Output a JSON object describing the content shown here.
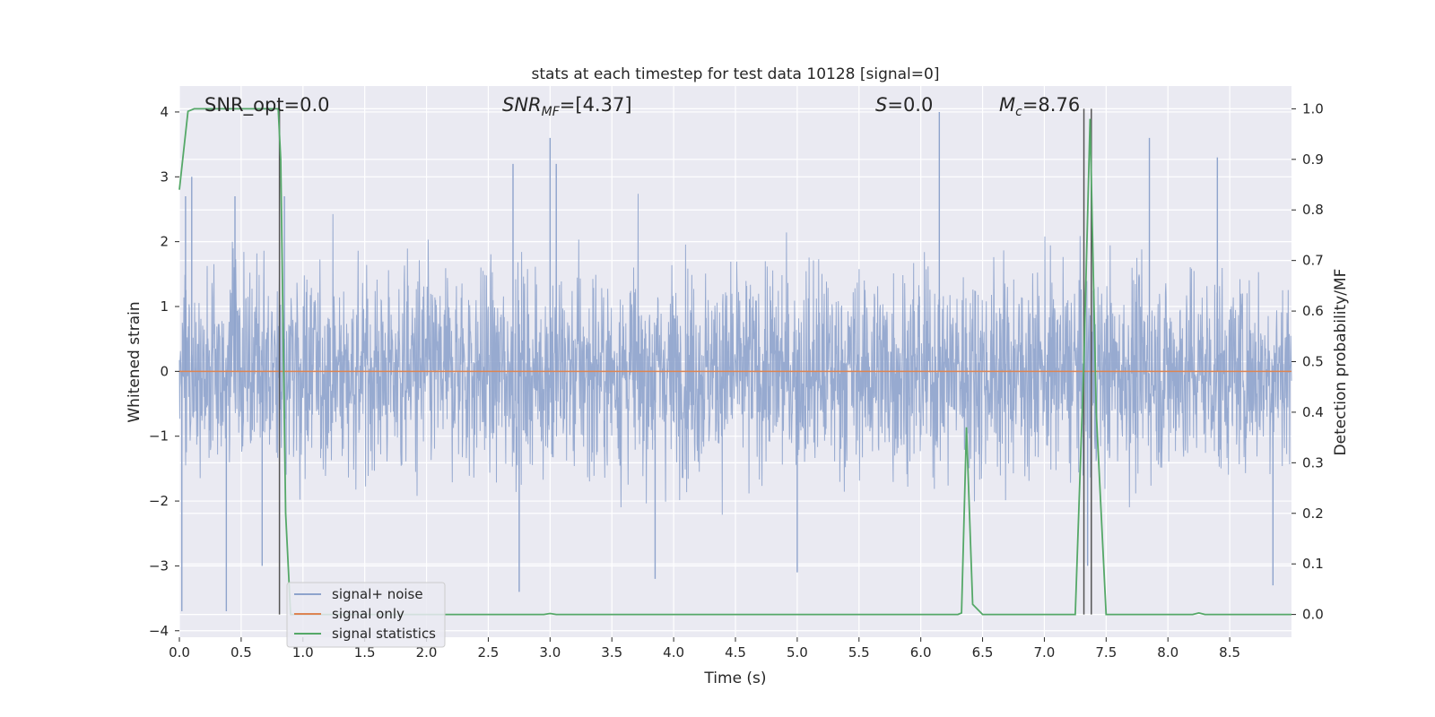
{
  "chart_data": {
    "type": "line",
    "title": "stats at each timestep for test data 10128 [signal=0]",
    "xlabel": "Time (s)",
    "ylabel": "Whitened strain",
    "ylabel_right": "Detection probability/MF",
    "xlim": [
      0,
      9.0
    ],
    "ylim": [
      -4.1,
      4.4
    ],
    "ylim_right": [
      -0.045,
      1.045
    ],
    "x_ticks": [
      "0.0",
      "0.5",
      "1.0",
      "1.5",
      "2.0",
      "2.5",
      "3.0",
      "3.5",
      "4.0",
      "4.5",
      "5.0",
      "5.5",
      "6.0",
      "6.5",
      "7.0",
      "7.5",
      "8.0",
      "8.5"
    ],
    "y_ticks": [
      "4",
      "3",
      "2",
      "1",
      "0",
      "−1",
      "−2",
      "−3",
      "−4"
    ],
    "y_right_ticks": [
      "1.0",
      "0.9",
      "0.8",
      "0.7",
      "0.6",
      "0.5",
      "0.4",
      "0.3",
      "0.2",
      "0.1",
      "0.0"
    ],
    "grid": true,
    "legend_position": "lower-left",
    "annotations": {
      "snr_opt": "SNR_opt=0.0",
      "snr_mf_base": "SNR",
      "snr_mf_sub": "MF",
      "snr_mf_value": "=[4.37]",
      "s_label": "S",
      "s_value": "=0.0",
      "mc_base": "M",
      "mc_sub": "c",
      "mc_value": "=8.76"
    },
    "series": [
      {
        "name": "signal+ noise",
        "color": "#8ea3cc",
        "description_values": "noisy whitened strain, roughly symmetric about 0, spanning about -3.7 to 4.0",
        "peaks": [
          [
            0.05,
            2.7
          ],
          [
            0.1,
            3.0
          ],
          [
            0.45,
            2.7
          ],
          [
            0.85,
            2.7
          ],
          [
            2.7,
            3.2
          ],
          [
            3.0,
            3.6
          ],
          [
            3.05,
            3.2
          ],
          [
            6.15,
            4.0
          ],
          [
            7.85,
            3.6
          ],
          [
            8.4,
            3.3
          ],
          [
            0.02,
            -3.7
          ],
          [
            0.38,
            -3.7
          ],
          [
            0.67,
            -3.0
          ],
          [
            2.75,
            -3.4
          ],
          [
            3.85,
            -3.2
          ],
          [
            5.0,
            -3.1
          ],
          [
            7.35,
            -3.0
          ],
          [
            8.85,
            -3.3
          ]
        ]
      },
      {
        "name": "signal only",
        "color": "#dd8452",
        "x": [
          0.0,
          9.0
        ],
        "y": [
          0.0,
          0.0
        ]
      },
      {
        "name": "signal statistics",
        "color": "#55a868",
        "axis": "right",
        "x": [
          0.0,
          0.07,
          0.12,
          0.2,
          0.5,
          0.75,
          0.8,
          0.82,
          0.86,
          0.9,
          0.95,
          2.8,
          2.95,
          3.0,
          3.05,
          6.3,
          6.33,
          6.37,
          6.42,
          6.5,
          7.25,
          7.32,
          7.37,
          7.42,
          7.5,
          7.6,
          8.2,
          8.25,
          8.3,
          9.0
        ],
        "y": [
          0.84,
          0.995,
          1.0,
          1.0,
          1.0,
          1.0,
          1.0,
          0.9,
          0.2,
          0.0,
          0.0,
          0.0,
          0.0,
          0.002,
          0.0,
          0.0,
          0.003,
          0.37,
          0.02,
          0.0,
          0.0,
          0.5,
          0.98,
          0.4,
          0.0,
          0.0,
          0.0,
          0.003,
          0.0,
          0.0
        ]
      }
    ],
    "vertical_lines": [
      0.81,
      7.32,
      7.38
    ]
  }
}
